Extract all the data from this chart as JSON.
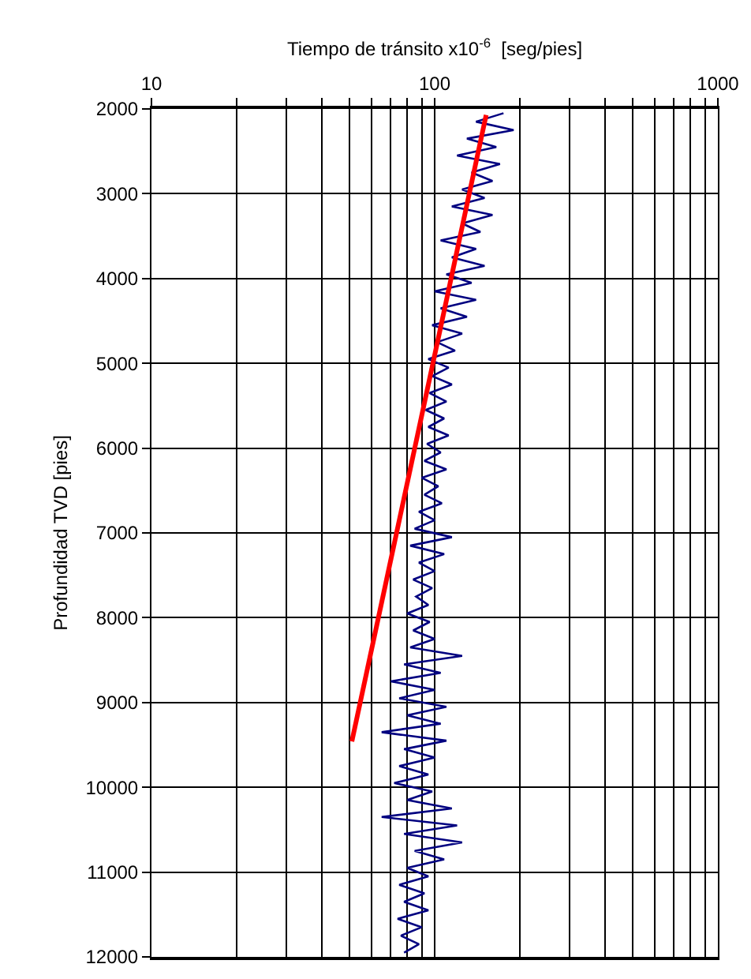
{
  "chart_data": {
    "type": "line",
    "xlabel": "Tiempo de tránsito x10$^{-6}$  [seg/pies]",
    "ylabel": "Profundidad TVD [pies]",
    "log": "x",
    "xlim": [
      10,
      1000
    ],
    "ylim": [
      12000,
      2000
    ],
    "xticks": [
      10,
      {
        "value": 20,
        "label": null
      },
      {
        "value": 30,
        "label": null
      },
      {
        "value": 40,
        "label": null
      },
      {
        "value": 50,
        "label": null
      },
      {
        "value": 60,
        "label": null
      },
      {
        "value": 70,
        "label": null
      },
      {
        "value": 80,
        "label": null
      },
      {
        "value": 90,
        "label": null
      },
      100,
      {
        "value": 200,
        "label": null
      },
      {
        "value": 300,
        "label": null
      },
      {
        "value": 400,
        "label": null
      },
      {
        "value": 500,
        "label": null
      },
      {
        "value": 600,
        "label": null
      },
      {
        "value": 700,
        "label": null
      },
      {
        "value": 800,
        "label": null
      },
      {
        "value": 900,
        "label": null
      },
      1000
    ],
    "yticks": [
      2000,
      3000,
      4000,
      5000,
      6000,
      7000,
      8000,
      9000,
      10000,
      11000,
      12000
    ],
    "grid": true,
    "marker": "none",
    "series": [
      {
        "color": "#000080",
        "x": [
          175,
          140,
          190,
          130,
          165,
          120,
          170,
          135,
          160,
          125,
          150,
          115,
          160,
          125,
          145,
          105,
          140,
          115,
          150,
          110,
          135,
          100,
          140,
          105,
          130,
          98,
          125,
          102,
          118,
          95,
          112,
          98,
          115,
          96,
          110,
          93,
          108,
          95,
          112,
          94,
          105,
          92,
          110,
          90,
          103,
          92,
          106,
          88,
          100,
          85,
          115,
          82,
          108,
          88,
          100,
          84,
          98,
          86,
          95,
          80,
          96,
          84,
          100,
          82,
          125,
          78,
          105,
          70,
          100,
          75,
          110,
          80,
          105,
          65,
          110,
          78,
          100,
          75,
          95,
          72,
          98,
          80,
          115,
          65,
          120,
          78,
          125,
          85,
          108,
          80,
          95,
          75,
          92,
          78,
          95,
          74,
          90,
          76,
          88,
          78
        ],
        "values": [
          2050,
          2150,
          2250,
          2350,
          2450,
          2550,
          2650,
          2750,
          2850,
          2950,
          3050,
          3150,
          3250,
          3350,
          3450,
          3550,
          3650,
          3750,
          3850,
          3950,
          4050,
          4150,
          4250,
          4350,
          4450,
          4550,
          4650,
          4750,
          4850,
          4950,
          5050,
          5150,
          5250,
          5350,
          5450,
          5550,
          5650,
          5750,
          5850,
          5950,
          6050,
          6150,
          6250,
          6350,
          6450,
          6550,
          6650,
          6750,
          6850,
          6950,
          7050,
          7150,
          7250,
          7350,
          7450,
          7550,
          7650,
          7750,
          7850,
          7950,
          8050,
          8150,
          8250,
          8350,
          8450,
          8550,
          8650,
          8750,
          8850,
          8950,
          9050,
          9150,
          9250,
          9350,
          9450,
          9550,
          9650,
          9750,
          9850,
          9950,
          10050,
          10150,
          10250,
          10350,
          10450,
          10550,
          10650,
          10750,
          10850,
          10950,
          11050,
          11150,
          11250,
          11350,
          11450,
          11550,
          11650,
          11750,
          11850,
          11950
        ]
      },
      {
        "color": "#ff0000",
        "x": [
          152,
          51
        ],
        "values": [
          2070,
          9460
        ]
      }
    ]
  }
}
